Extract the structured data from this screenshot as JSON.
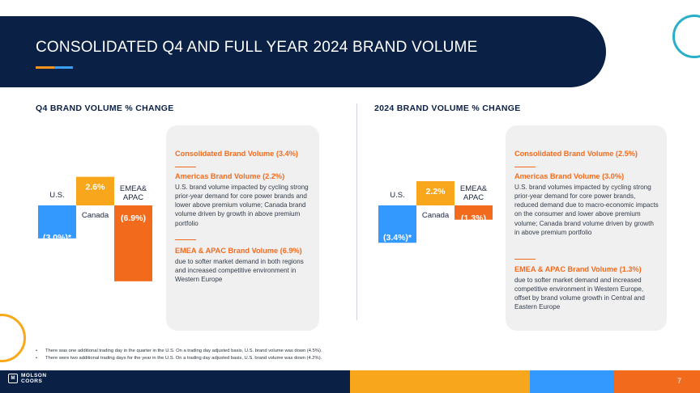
{
  "header": {
    "title": "CONSOLIDATED Q4 AND FULL YEAR 2024 BRAND VOLUME"
  },
  "left": {
    "section_title": "Q4 BRAND VOLUME % CHANGE",
    "box": {
      "consolidated": "Consolidated Brand Volume (3.4%)",
      "americas_head": "Americas Brand Volume (2.2%)",
      "americas_body": "U.S. brand volume impacted by cycling strong prior-year demand for core power brands and lower above premium volume; Canada brand volume driven by growth in above premium portfolio",
      "emea_head": "EMEA & APAC Brand Volume (6.9%)",
      "emea_body": "due to softer market demand in both regions and increased competitive environment in Western Europe"
    }
  },
  "right": {
    "section_title": "2024 BRAND VOLUME % CHANGE",
    "box": {
      "consolidated": "Consolidated Brand Volume (2.5%)",
      "americas_head": "Americas Brand Volume (3.0%)",
      "americas_body": "U.S. brand volumes impacted by cycling strong prior-year demand for core power brands, reduced demand due to macro-economic impacts on the consumer and lower above premium volume; Canada brand volume driven by growth in above premium portfolio",
      "emea_head": "EMEA & APAC Brand Volume (1.3%)",
      "emea_body": "due to softer market demand and increased competitive environment in Western Europe, offset by brand volume growth in Central and Eastern Europe"
    }
  },
  "chart_data": [
    {
      "type": "bar",
      "title": "Q4 BRAND VOLUME % CHANGE",
      "categories": [
        "U.S.",
        "Canada",
        "EMEA&\nAPAC"
      ],
      "values": [
        -3.0,
        2.6,
        -6.9
      ],
      "data_labels": [
        "(3.0%)*",
        "2.6%",
        "(6.9%)"
      ],
      "colors": [
        "#3399ff",
        "#f8a61b",
        "#f26b1d"
      ]
    },
    {
      "type": "bar",
      "title": "2024 BRAND VOLUME % CHANGE",
      "categories": [
        "U.S.",
        "Canada",
        "EMEA&\nAPAC"
      ],
      "values": [
        -3.4,
        2.2,
        -1.3
      ],
      "data_labels": [
        "(3.4%)*",
        "2.2%",
        "(1.3%)"
      ],
      "colors": [
        "#3399ff",
        "#f8a61b",
        "#f26b1d"
      ]
    }
  ],
  "footnotes": [
    "There was one additional trading day in the quarter in the U.S.  On a trading day adjusted basis, U.S. brand volume was down (4.5%).",
    "There were two additional trading days for the year in the U.S.  On a trading day adjusted basis, U.S. brand volume was down (4.2%)."
  ],
  "footer": {
    "logo_line1": "MOLSON",
    "logo_line2": "COORS",
    "page_number": "7",
    "colors": {
      "navy": "#0b2045",
      "yellow": "#f8a61b",
      "blue": "#3399ff",
      "orange": "#f26b1d"
    }
  }
}
